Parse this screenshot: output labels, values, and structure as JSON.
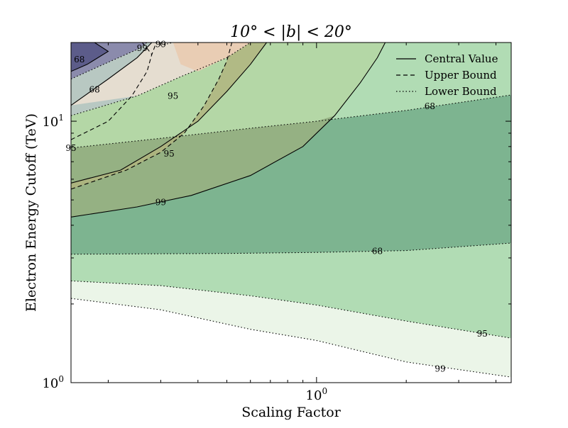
{
  "chart_data": {
    "type": "contour",
    "title": "10° < |b| < 20°",
    "xlabel": "Scaling Factor",
    "ylabel": "Electron Energy Cutoff (TeV)",
    "xscale": "log",
    "yscale": "log",
    "xlim": [
      0.15,
      4.5
    ],
    "ylim": [
      1.0,
      20.0
    ],
    "x_ticks": [
      {
        "value": 1.0,
        "label": "10^0"
      }
    ],
    "y_ticks": [
      {
        "value": 1.0,
        "label": "10^0"
      },
      {
        "value": 10.0,
        "label": "10^1"
      }
    ],
    "legend": {
      "position": "upper right",
      "entries": [
        {
          "label": "Central Value",
          "linestyle": "solid"
        },
        {
          "label": "Upper Bound",
          "linestyle": "dashed"
        },
        {
          "label": "Lower Bound",
          "linestyle": "dotted"
        }
      ]
    },
    "region_colors": {
      "green_99": "#ebf5e8",
      "green_95": "#b1dcb4",
      "green_68": "#7db490",
      "cyan_95": "#b8c8c2",
      "navy_68": "#5c5c8a",
      "navy_95": "#8b8bac",
      "pink_95": "#d7b8be",
      "tan_95": "#e5ddd0",
      "orange_99": "#e9cdb4",
      "olive_region": "#b0b57f",
      "olive_dark": "#8faa7c",
      "lightgreen_95": "#b4d7a6"
    },
    "series": [
      {
        "name": "Lower Bound",
        "linestyle": "dotted",
        "contours": [
          {
            "level": "99",
            "points": [
              [
                0.15,
                2.1
              ],
              [
                0.3,
                1.9
              ],
              [
                0.6,
                1.6
              ],
              [
                1.0,
                1.45
              ],
              [
                2.0,
                1.2
              ],
              [
                4.5,
                1.05
              ]
            ],
            "label_at": [
              2.6,
              1.13
            ]
          },
          {
            "level": "95",
            "points": [
              [
                0.15,
                2.45
              ],
              [
                0.3,
                2.35
              ],
              [
                0.6,
                2.15
              ],
              [
                1.0,
                1.98
              ],
              [
                2.0,
                1.72
              ],
              [
                4.5,
                1.48
              ]
            ],
            "label_at": [
              3.6,
              1.54
            ]
          },
          {
            "level": "68",
            "points": [
              [
                0.15,
                3.1
              ],
              [
                0.5,
                3.12
              ],
              [
                1.0,
                3.15
              ],
              [
                2.0,
                3.2
              ],
              [
                4.5,
                3.42
              ]
            ],
            "label_at": [
              1.6,
              3.18
            ]
          },
          {
            "level": "68",
            "points": [
              [
                0.15,
                7.9
              ],
              [
                0.3,
                8.6
              ],
              [
                0.6,
                9.4
              ],
              [
                1.0,
                10.0
              ],
              [
                2.0,
                11.0
              ],
              [
                4.5,
                12.6
              ]
            ],
            "label_at": [
              2.4,
              11.4
            ]
          },
          {
            "level": "95",
            "points": [
              [
                0.15,
                10.5
              ],
              [
                0.25,
                12.5
              ],
              [
                0.35,
                14.8
              ],
              [
                0.5,
                17.5
              ],
              [
                0.6,
                20.0
              ]
            ],
            "label_at": [
              0.15,
              7.9
            ]
          },
          {
            "level": "95",
            "points": [
              [
                0.15,
                14.5
              ],
              [
                0.2,
                16.8
              ],
              [
                0.25,
                18.8
              ],
              [
                0.27,
                20.0
              ]
            ]
          },
          {
            "level": "99",
            "points": [
              [
                0.3,
                19.5
              ],
              [
                0.33,
                20.0
              ]
            ],
            "label_at": [
              0.3,
              19.7
            ]
          }
        ]
      },
      {
        "name": "Central Value",
        "linestyle": "solid",
        "contours": [
          {
            "level": "99",
            "points": [
              [
                0.15,
                4.3
              ],
              [
                0.25,
                4.7
              ],
              [
                0.38,
                5.2
              ],
              [
                0.6,
                6.2
              ],
              [
                0.9,
                8.0
              ],
              [
                1.15,
                10.5
              ],
              [
                1.4,
                14.0
              ],
              [
                1.6,
                17.5
              ],
              [
                1.7,
                20.0
              ]
            ],
            "label_at": [
              0.3,
              4.9
            ]
          },
          {
            "level": "95",
            "points": [
              [
                0.15,
                5.8
              ],
              [
                0.22,
                6.5
              ],
              [
                0.3,
                8.0
              ],
              [
                0.4,
                10.0
              ],
              [
                0.5,
                13.0
              ],
              [
                0.6,
                16.5
              ],
              [
                0.68,
                20.0
              ]
            ],
            "label_at": [
              0.33,
              12.5
            ]
          },
          {
            "level": "68",
            "points": [
              [
                0.15,
                11.5
              ],
              [
                0.2,
                14.5
              ],
              [
                0.25,
                17.5
              ],
              [
                0.28,
                20.0
              ]
            ],
            "label_at": [
              0.18,
              13.2
            ]
          },
          {
            "level": "68",
            "points": [
              [
                0.18,
                20.0
              ],
              [
                0.2,
                18.5
              ],
              [
                0.17,
                16.5
              ],
              [
                0.15,
                15.5
              ]
            ],
            "label_at": [
              0.16,
              17.2
            ]
          }
        ]
      },
      {
        "name": "Upper Bound",
        "linestyle": "dashed",
        "contours": [
          {
            "level": "95",
            "points": [
              [
                0.15,
                5.5
              ],
              [
                0.23,
                6.5
              ],
              [
                0.3,
                7.6
              ],
              [
                0.36,
                9.0
              ],
              [
                0.42,
                11.5
              ],
              [
                0.47,
                14.5
              ],
              [
                0.5,
                17.0
              ],
              [
                0.52,
                20.0
              ]
            ],
            "label_at": [
              0.32,
              7.5
            ]
          },
          {
            "level": "68",
            "points": [
              [
                0.15,
                8.5
              ],
              [
                0.2,
                10.0
              ],
              [
                0.24,
                12.5
              ],
              [
                0.27,
                15.5
              ],
              [
                0.28,
                18.0
              ],
              [
                0.29,
                20.0
              ]
            ]
          },
          {
            "level": "99",
            "points": [
              [
                0.26,
                20.0
              ],
              [
                0.27,
                19.0
              ],
              [
                0.28,
                18.0
              ]
            ],
            "label_at": [
              0.26,
              19.0
            ]
          }
        ]
      }
    ]
  }
}
